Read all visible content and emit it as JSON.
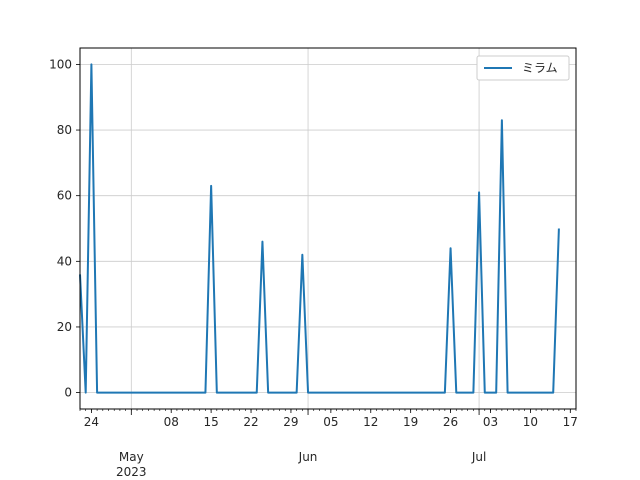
{
  "chart_data": {
    "type": "line",
    "title": "",
    "xlabel": "",
    "ylabel": "",
    "x_range": [
      "2023-04-22",
      "2023-07-18"
    ],
    "ylim": [
      -5,
      105
    ],
    "grid": true,
    "legend_position": "top-right",
    "y_ticks": [
      0,
      20,
      40,
      60,
      80,
      100
    ],
    "x_minor_ticks": [
      {
        "date": "2023-04-24",
        "label": "24"
      },
      {
        "date": "2023-05-08",
        "label": "08"
      },
      {
        "date": "2023-05-15",
        "label": "15"
      },
      {
        "date": "2023-05-22",
        "label": "22"
      },
      {
        "date": "2023-05-29",
        "label": "29"
      },
      {
        "date": "2023-06-05",
        "label": "05"
      },
      {
        "date": "2023-06-12",
        "label": "12"
      },
      {
        "date": "2023-06-19",
        "label": "19"
      },
      {
        "date": "2023-06-26",
        "label": "26"
      },
      {
        "date": "2023-07-03",
        "label": "03"
      },
      {
        "date": "2023-07-10",
        "label": "10"
      },
      {
        "date": "2023-07-17",
        "label": "17"
      }
    ],
    "x_major_ticks": [
      {
        "date": "2023-05-01",
        "label": "May\n2023"
      },
      {
        "date": "2023-06-01",
        "label": "Jun"
      },
      {
        "date": "2023-07-01",
        "label": "Jul"
      }
    ],
    "series": [
      {
        "name": "ミラム",
        "color": "#1f77b4",
        "points": [
          {
            "x": "2023-04-22",
            "y": 36
          },
          {
            "x": "2023-04-23",
            "y": 0
          },
          {
            "x": "2023-04-24",
            "y": 100
          },
          {
            "x": "2023-04-25",
            "y": 0
          },
          {
            "x": "2023-05-14",
            "y": 0
          },
          {
            "x": "2023-05-15",
            "y": 63
          },
          {
            "x": "2023-05-16",
            "y": 0
          },
          {
            "x": "2023-05-23",
            "y": 0
          },
          {
            "x": "2023-05-24",
            "y": 46
          },
          {
            "x": "2023-05-25",
            "y": 0
          },
          {
            "x": "2023-05-30",
            "y": 0
          },
          {
            "x": "2023-05-31",
            "y": 42
          },
          {
            "x": "2023-06-01",
            "y": 0
          },
          {
            "x": "2023-06-25",
            "y": 0
          },
          {
            "x": "2023-06-26",
            "y": 44
          },
          {
            "x": "2023-06-27",
            "y": 0
          },
          {
            "x": "2023-06-30",
            "y": 0
          },
          {
            "x": "2023-07-01",
            "y": 61
          },
          {
            "x": "2023-07-02",
            "y": 0
          },
          {
            "x": "2023-07-04",
            "y": 0
          },
          {
            "x": "2023-07-05",
            "y": 83
          },
          {
            "x": "2023-07-06",
            "y": 0
          },
          {
            "x": "2023-07-13",
            "y": 0
          },
          {
            "x": "2023-07-14",
            "y": 0
          },
          {
            "x": "2023-07-15",
            "y": 50
          }
        ]
      }
    ]
  }
}
